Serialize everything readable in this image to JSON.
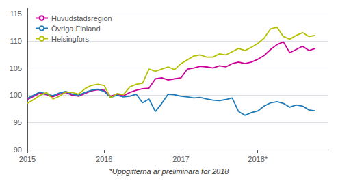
{
  "chart_data": {
    "type": "line",
    "footnote": "*Uppgifterna är preliminära för 2018",
    "x": [
      2015,
      2015.0833333333333,
      2015.1666666666667,
      2015.25,
      2015.3333333333333,
      2015.4166666666667,
      2015.5,
      2015.5833333333333,
      2015.6666666666667,
      2015.75,
      2015.8333333333333,
      2015.9166666666667,
      2016,
      2016.0833333333333,
      2016.1666666666667,
      2016.25,
      2016.3333333333333,
      2016.4166666666667,
      2016.5,
      2016.5833333333333,
      2016.6666666666667,
      2016.75,
      2016.8333333333333,
      2016.9166666666667,
      2017,
      2017.0833333333333,
      2017.1666666666667,
      2017.25,
      2017.3333333333333,
      2017.4166666666667,
      2017.5,
      2017.5833333333333,
      2017.6666666666667,
      2017.75,
      2017.8333333333333,
      2017.9166666666667,
      2018,
      2018.0833333333333,
      2018.1666666666667,
      2018.25,
      2018.3333333333333,
      2018.4166666666667,
      2018.5,
      2018.5833333333333,
      2018.6666666666667,
      2018.75
    ],
    "series": [
      {
        "name": "Huvudstadsregion",
        "color": "#cc0099",
        "values": [
          99.2,
          99.8,
          100.4,
          100.1,
          99.7,
          100.2,
          100.5,
          100.0,
          99.8,
          100.3,
          100.8,
          101.0,
          100.9,
          99.8,
          100.2,
          99.9,
          100.5,
          100.9,
          101.2,
          101.3,
          103.0,
          103.2,
          102.8,
          103.0,
          103.2,
          104.8,
          105.0,
          105.3,
          105.2,
          105.0,
          105.4,
          105.2,
          105.8,
          106.1,
          105.8,
          106.1,
          106.6,
          107.3,
          108.4,
          109.3,
          109.8,
          107.8,
          108.4,
          109.0,
          108.2,
          108.6
        ]
      },
      {
        "name": "Övriga Finland",
        "color": "#1e7ab8",
        "values": [
          99.4,
          100.0,
          100.6,
          100.2,
          99.9,
          100.4,
          100.7,
          100.2,
          100.0,
          100.5,
          100.9,
          101.1,
          100.7,
          99.6,
          100.0,
          99.7,
          99.8,
          100.2,
          98.6,
          99.3,
          97.0,
          98.5,
          100.2,
          100.1,
          99.8,
          99.7,
          99.5,
          99.6,
          99.3,
          99.1,
          99.0,
          99.2,
          99.5,
          97.0,
          96.3,
          96.8,
          97.1,
          98.0,
          98.6,
          98.8,
          98.5,
          97.8,
          98.2,
          98.0,
          97.3,
          97.1
        ]
      },
      {
        "name": "Helsingfors",
        "color": "#b5c000",
        "values": [
          98.5,
          99.2,
          100.0,
          100.5,
          99.3,
          99.8,
          100.6,
          100.5,
          100.2,
          101.2,
          101.8,
          102.0,
          101.8,
          99.5,
          100.3,
          100.1,
          101.5,
          102.0,
          102.2,
          104.8,
          104.4,
          104.8,
          105.2,
          104.7,
          105.8,
          106.5,
          107.2,
          107.4,
          107.0,
          107.0,
          107.6,
          107.4,
          108.0,
          108.6,
          108.2,
          108.8,
          109.5,
          110.5,
          112.2,
          112.5,
          110.8,
          110.3,
          111.0,
          111.5,
          110.8,
          111.0
        ]
      }
    ],
    "xlim": [
      2015.0,
      2018.92
    ],
    "xticks": [
      2015,
      2016,
      2017,
      {
        "value": 2018,
        "label": "2018*"
      }
    ],
    "ylim": [
      90,
      116
    ],
    "yticks": [
      90,
      95,
      100,
      105,
      110,
      115
    ],
    "grid": true,
    "legend": "upper left"
  }
}
